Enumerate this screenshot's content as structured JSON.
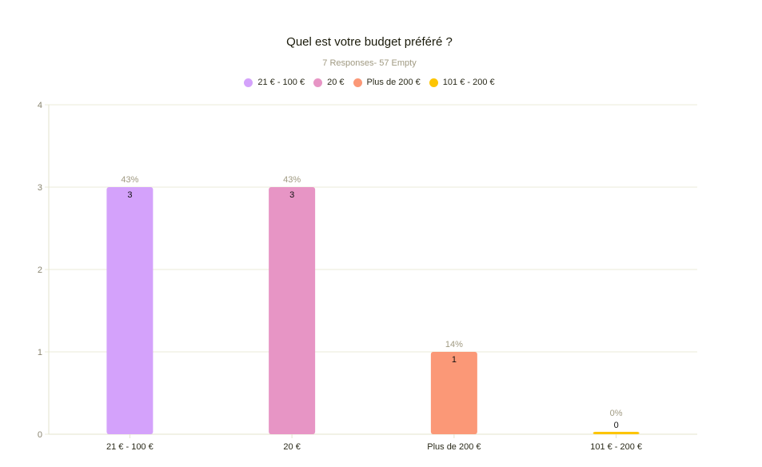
{
  "chart_data": {
    "type": "bar",
    "title": "Quel est votre budget préféré ?",
    "subtitle": "7 Responses- 57 Empty",
    "categories": [
      "21 € - 100 €",
      "20 €",
      "Plus de 200 €",
      "101 € - 200 €"
    ],
    "values": [
      3,
      3,
      1,
      0
    ],
    "percent_labels": [
      "43%",
      "43%",
      "14%",
      "0%"
    ],
    "colors": [
      "#d4a2fb",
      "#e795c5",
      "#fb9877",
      "#fdc502"
    ],
    "legend": [
      "21 € - 100 €",
      "20 €",
      "Plus de 200 €",
      "101 € - 200 €"
    ],
    "legend_position": "top",
    "yticks": [
      "0",
      "1",
      "2",
      "3",
      "4"
    ],
    "ylim": [
      0,
      4
    ],
    "grid": true,
    "xlabel": "",
    "ylabel": ""
  }
}
